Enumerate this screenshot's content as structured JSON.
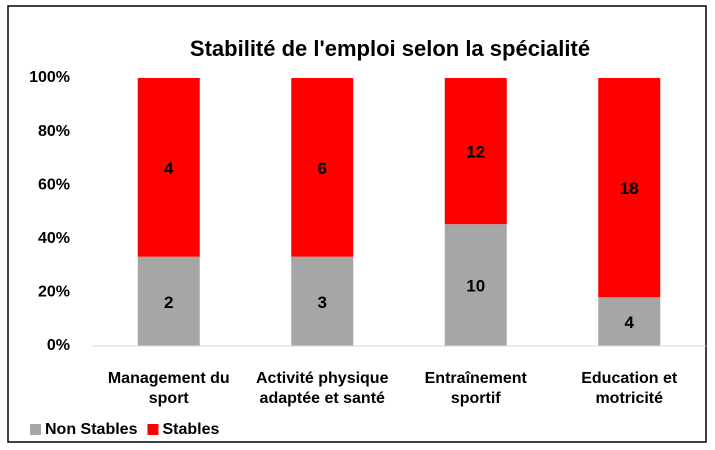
{
  "chart_data": {
    "type": "bar",
    "stacking": "percent",
    "title": "Stabilité de l'emploi selon la spécialité",
    "categories": [
      "Management du sport",
      "Activité physique adaptée et santé",
      "Entraînement sportif",
      "Education et motricité"
    ],
    "series": [
      {
        "name": "Non Stables",
        "color": "#a6a6a6",
        "values": [
          2,
          3,
          10,
          4
        ]
      },
      {
        "name": "Stables",
        "color": "#ff0000",
        "values": [
          4,
          6,
          12,
          18
        ]
      }
    ],
    "ylim": [
      0,
      100
    ],
    "yticks": [
      {
        "value": 0,
        "label": "0%"
      },
      {
        "value": 20,
        "label": "20%"
      },
      {
        "value": 40,
        "label": "40%"
      },
      {
        "value": 60,
        "label": "60%"
      },
      {
        "value": 80,
        "label": "80%"
      },
      {
        "value": 100,
        "label": "100%"
      }
    ],
    "grid": false,
    "legend": "bottom-left"
  }
}
